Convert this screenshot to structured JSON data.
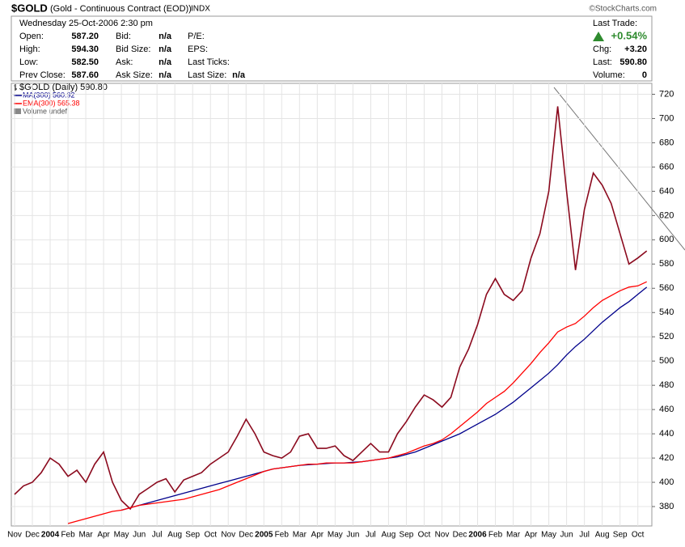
{
  "header": {
    "symbol": "$GOLD",
    "name": "(Gold - Continuous Contract (EOD))",
    "exchange": "INDX",
    "copyright": "©StockCharts.com",
    "datetime": "Wednesday  25-Oct-2006  2:30 pm",
    "col1": [
      {
        "label": "Open:",
        "value": "587.20"
      },
      {
        "label": "High:",
        "value": "594.30"
      },
      {
        "label": "Low:",
        "value": "582.50"
      },
      {
        "label": "Prev Close:",
        "value": "587.60"
      }
    ],
    "col2": [
      {
        "label": "Bid:",
        "value": "n/a"
      },
      {
        "label": "Bid Size:",
        "value": "n/a"
      },
      {
        "label": "Ask:",
        "value": "n/a"
      },
      {
        "label": "Ask Size:",
        "value": "n/a"
      }
    ],
    "col3": [
      {
        "label": "P/E:"
      },
      {
        "label": "EPS:"
      },
      {
        "label": "Last Ticks:"
      },
      {
        "label": "Last Size:",
        "value": "n/a"
      }
    ],
    "last_trade_label": "Last Trade:",
    "change_pct": "+0.54%",
    "col4": [
      {
        "label": "Chg:",
        "value": "+3.20"
      },
      {
        "label": "Last:",
        "value": "590.80"
      },
      {
        "label": "Volume:",
        "value": "0"
      }
    ]
  },
  "chart_data": {
    "type": "line",
    "categories": [
      "Nov",
      null,
      "Dec",
      null,
      "2004",
      null,
      "Feb",
      null,
      "Mar",
      null,
      "Apr",
      null,
      "May",
      null,
      "Jun",
      null,
      "Jul",
      null,
      "Aug",
      null,
      "Sep",
      null,
      "Oct",
      null,
      "Nov",
      null,
      "Dec",
      null,
      "2005",
      null,
      "Feb",
      null,
      "Mar",
      null,
      "Apr",
      null,
      "May",
      null,
      "Jun",
      null,
      "Jul",
      null,
      "Aug",
      null,
      "Sep",
      null,
      "Oct",
      null,
      "Nov",
      null,
      "Dec",
      null,
      "2006",
      null,
      "Feb",
      null,
      "Mar",
      null,
      "Apr",
      null,
      "May",
      null,
      "Jun",
      null,
      "Jul",
      null,
      "Aug",
      null,
      "Sep",
      null,
      "Oct",
      null
    ],
    "series": [
      {
        "name": "$GOLD (Daily) 590.80",
        "color": "#8b0a1e",
        "values": [
          390,
          397,
          400,
          408,
          420,
          415,
          405,
          410,
          400,
          415,
          425,
          400,
          385,
          378,
          390,
          395,
          400,
          403,
          392,
          402,
          405,
          408,
          415,
          420,
          425,
          438,
          452,
          440,
          425,
          422,
          420,
          425,
          438,
          440,
          428,
          428,
          430,
          422,
          418,
          425,
          432,
          425,
          425,
          440,
          450,
          462,
          472,
          468,
          462,
          470,
          495,
          510,
          530,
          555,
          568,
          555,
          550,
          558,
          585,
          605,
          640,
          710,
          640,
          575,
          625,
          655,
          645,
          630,
          605,
          580,
          585,
          590.8
        ]
      },
      {
        "name": "MA(300) 560.92",
        "color": "#00008b",
        "values": [
          null,
          null,
          null,
          null,
          null,
          null,
          null,
          null,
          null,
          null,
          null,
          null,
          377,
          379,
          381,
          383,
          385,
          387,
          389,
          391,
          393,
          395,
          397,
          399,
          401,
          403,
          405,
          407,
          409,
          411,
          412,
          413,
          414,
          414.5,
          415,
          415.5,
          416,
          416,
          416.5,
          417,
          418,
          419,
          420,
          421,
          423,
          425,
          428,
          431,
          434,
          437,
          440,
          444,
          448,
          452,
          456,
          461,
          466,
          472,
          478,
          484,
          490,
          497,
          505,
          512,
          518,
          525,
          532,
          538,
          544,
          549,
          555,
          560.92
        ]
      },
      {
        "name": "EMA(300) 565.38",
        "color": "#ff0000",
        "values": [
          null,
          null,
          null,
          null,
          null,
          null,
          366,
          368,
          370,
          372,
          374,
          376,
          377,
          379,
          381,
          382,
          383,
          384,
          385,
          386,
          388,
          390,
          392,
          394,
          397,
          400,
          403,
          406,
          409,
          411,
          412,
          413,
          414,
          415,
          415,
          416,
          416,
          416,
          416,
          417,
          418,
          419,
          420,
          422,
          424,
          427,
          430,
          432,
          435,
          440,
          446,
          452,
          458,
          465,
          470,
          475,
          482,
          490,
          498,
          507,
          515,
          524,
          528,
          531,
          537,
          544,
          550,
          554,
          558,
          561,
          562,
          565.38
        ]
      }
    ],
    "legend_note": "Volume undef",
    "ylim": [
      364,
      729
    ],
    "yticks": [
      380,
      400,
      420,
      440,
      460,
      480,
      500,
      520,
      540,
      560,
      580,
      600,
      620,
      640,
      660,
      680,
      700,
      720
    ],
    "grid": true
  }
}
